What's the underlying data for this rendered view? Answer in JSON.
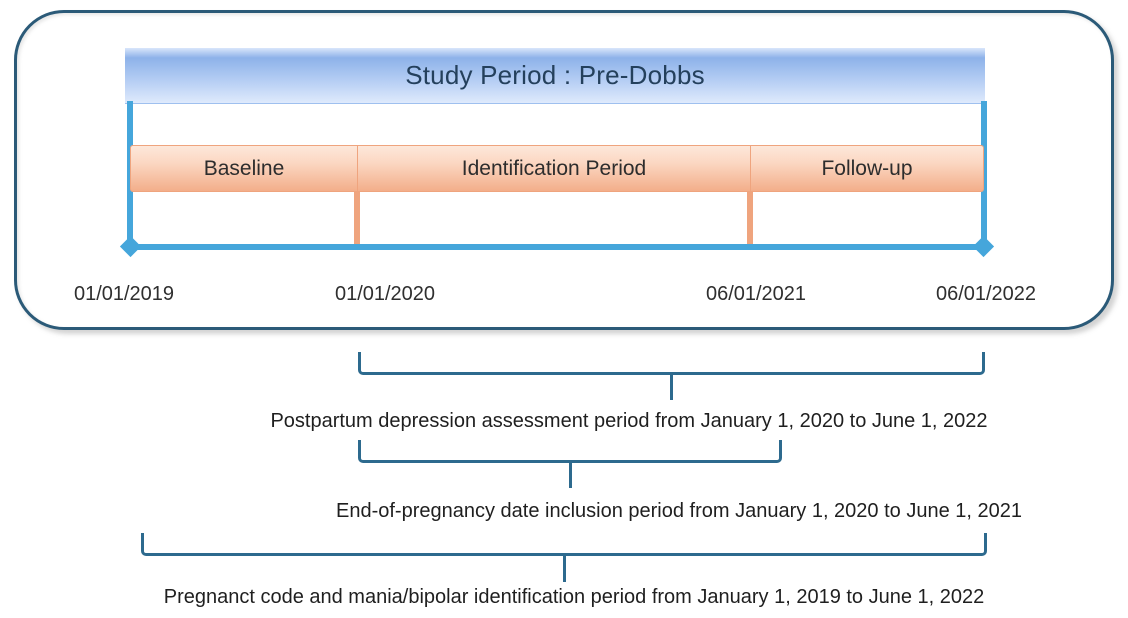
{
  "panel": {
    "title": "Study Period : Pre-Dobbs",
    "phases": [
      {
        "label": "Baseline"
      },
      {
        "label": "Identification Period"
      },
      {
        "label": "Follow-up"
      }
    ],
    "dates": [
      "01/01/2019",
      "01/01/2020",
      "06/01/2021",
      "06/01/2022"
    ]
  },
  "annotations": [
    {
      "label": "Postpartum depression assessment period from January 1, 2020 to June 1, 2022"
    },
    {
      "label": "End-of-pregnancy date inclusion period from January 1, 2020 to June 1, 2021"
    },
    {
      "label": "Pregnanct code and mania/bipolar identification period from January 1, 2019 to June 1, 2022"
    }
  ],
  "colors": {
    "accent_blue": "#45a6db",
    "panel_border": "#2b5a78",
    "bracket_teal": "#2d6a8e",
    "phase_fill": "#f5b28e",
    "phase_border": "#efa47e",
    "title_fill": "#b6cef4",
    "title_text": "#24405c"
  }
}
